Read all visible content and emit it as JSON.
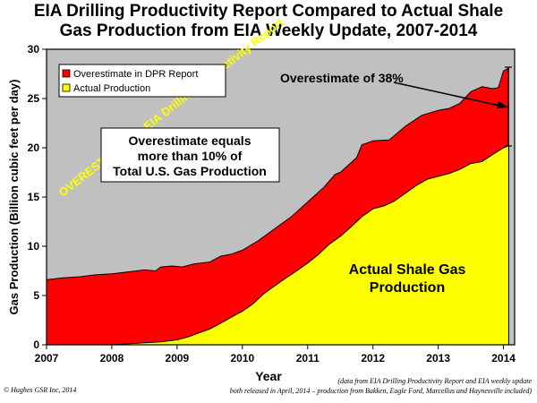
{
  "title_lines": [
    "EIA Drilling Productivity Report Compared to Actual Shale",
    "Gas Production from EIA Weekly Update, 2007-2014"
  ],
  "copyright": "© Hughes GSR Inc, 2014",
  "source_note_lines": [
    "(data from EIA Drilling Productivity Report and EIA weekly update",
    "both released in April, 2014 – production from Bakken, Eagle Ford, Marcellus and Haynesville included)"
  ],
  "colors": {
    "plot_background": "#c0c0c0",
    "dpr_fill": "#ff0000",
    "actual_fill": "#ffff00",
    "accent_text": "#ffff00"
  },
  "chart_data": {
    "type": "area",
    "title": "EIA Drilling Productivity Report Compared to Actual Shale Gas Production from EIA Weekly Update, 2007-2014",
    "xlabel": "Year",
    "ylabel": "Gas Production (Billion cubic feet per day)",
    "xlim": [
      2007,
      2014.17
    ],
    "ylim": [
      0,
      30
    ],
    "x_ticks": [
      "2007",
      "2008",
      "2009",
      "2010",
      "2011",
      "2012",
      "2013",
      "2014"
    ],
    "y_ticks": [
      "0",
      "5",
      "10",
      "15",
      "20",
      "25",
      "30"
    ],
    "grid": false,
    "legend_position": "top-left",
    "series": [
      {
        "name": "Overestimate in DPR Report",
        "color": "#ff0000",
        "x": [
          2007.0,
          2007.25,
          2007.5,
          2007.75,
          2008.0,
          2008.25,
          2008.5,
          2008.67,
          2008.75,
          2008.92,
          2009.08,
          2009.25,
          2009.5,
          2009.67,
          2009.83,
          2010.0,
          2010.25,
          2010.5,
          2010.75,
          2011.0,
          2011.25,
          2011.42,
          2011.5,
          2011.75,
          2011.83,
          2012.0,
          2012.25,
          2012.5,
          2012.75,
          2013.0,
          2013.17,
          2013.33,
          2013.5,
          2013.67,
          2013.83,
          2013.92,
          2014.0,
          2014.08
        ],
        "values": [
          6.6,
          6.8,
          6.9,
          7.1,
          7.2,
          7.4,
          7.6,
          7.5,
          7.9,
          8.0,
          7.9,
          8.2,
          8.4,
          9.0,
          9.2,
          9.6,
          10.6,
          11.8,
          13.0,
          14.5,
          16.0,
          17.3,
          17.5,
          19.0,
          20.3,
          20.7,
          20.8,
          22.2,
          23.3,
          23.8,
          24.0,
          24.5,
          25.7,
          26.2,
          26.0,
          26.1,
          27.8,
          28.1
        ]
      },
      {
        "name": "Actual Production",
        "color": "#ffff00",
        "x": [
          2007.0,
          2007.5,
          2008.0,
          2008.25,
          2008.5,
          2008.75,
          2009.0,
          2009.17,
          2009.33,
          2009.5,
          2009.67,
          2009.83,
          2010.0,
          2010.17,
          2010.33,
          2010.5,
          2010.67,
          2010.83,
          2011.0,
          2011.17,
          2011.33,
          2011.5,
          2011.67,
          2011.83,
          2012.0,
          2012.17,
          2012.33,
          2012.5,
          2012.67,
          2012.83,
          2013.0,
          2013.17,
          2013.33,
          2013.5,
          2013.67,
          2013.83,
          2014.0,
          2014.08
        ],
        "values": [
          0.0,
          0.0,
          0.0,
          0.1,
          0.2,
          0.3,
          0.5,
          0.8,
          1.2,
          1.6,
          2.2,
          2.8,
          3.4,
          4.2,
          5.2,
          6.0,
          6.8,
          7.5,
          8.3,
          9.2,
          10.2,
          11.0,
          12.0,
          13.0,
          13.8,
          14.1,
          14.6,
          15.4,
          16.2,
          16.8,
          17.1,
          17.4,
          17.8,
          18.4,
          18.6,
          19.3,
          20.0,
          20.2
        ]
      }
    ],
    "annotations": {
      "overestimate_callout": "Overestimate of 38%",
      "overestimate_box_lines": [
        "Overestimate equals",
        "more than 10% of",
        "Total U.S. Gas Production"
      ],
      "band_label": "OVERESTIMATE in EIA Drilling Productivity Report",
      "actual_label_lines": [
        "Actual Shale Gas",
        "Production"
      ]
    }
  }
}
